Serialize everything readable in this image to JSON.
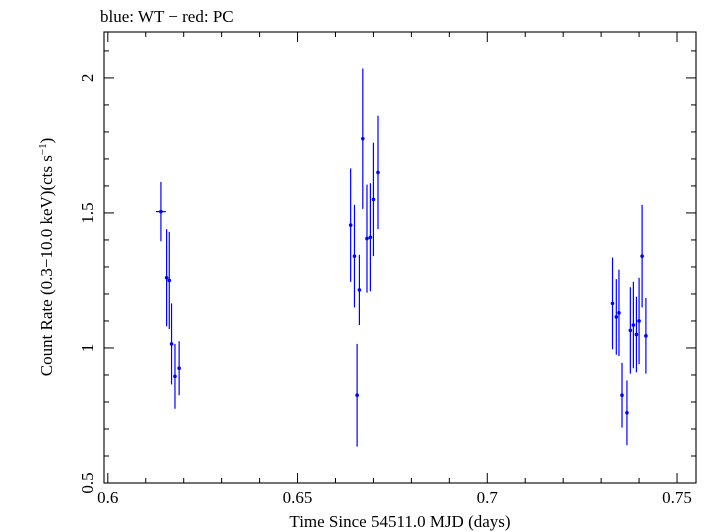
{
  "chart_data": {
    "type": "scatter",
    "title": "blue: WT − red: PC",
    "xlabel": "Time Since 54511.0 MJD (days)",
    "ylabel_main": "Count Rate (0.3−10.0 keV)(cts s",
    "ylabel_sup": "−1",
    "ylabel_end": ")",
    "xlim": [
      0.599,
      0.755
    ],
    "ylim": [
      0.5,
      2.17
    ],
    "xticks": [
      0.6,
      0.65,
      0.7,
      0.75
    ],
    "xtick_labels": [
      "0.6",
      "0.65",
      "0.7",
      "0.75"
    ],
    "yticks": [
      0.5,
      1,
      1.5,
      2
    ],
    "ytick_labels": [
      "0.5",
      "1",
      "1.5",
      "2"
    ],
    "grid": false,
    "series": [
      {
        "name": "WT",
        "color": "#0000ff",
        "points": [
          {
            "x": 0.614,
            "y": 1.505,
            "xerr": 0.0013,
            "yerr": 0.11
          },
          {
            "x": 0.6155,
            "y": 1.26,
            "xerr": 0.0003,
            "yerr": 0.18
          },
          {
            "x": 0.6162,
            "y": 1.25,
            "xerr": 0.0003,
            "yerr": 0.18
          },
          {
            "x": 0.6168,
            "y": 1.015,
            "xerr": 0.0003,
            "yerr": 0.15
          },
          {
            "x": 0.6177,
            "y": 0.895,
            "xerr": 0.0003,
            "yerr": 0.12
          },
          {
            "x": 0.6188,
            "y": 0.925,
            "xerr": 0.0003,
            "yerr": 0.1
          },
          {
            "x": 0.664,
            "y": 1.455,
            "xerr": 0.0003,
            "yerr": 0.21
          },
          {
            "x": 0.665,
            "y": 1.34,
            "xerr": 0.0003,
            "yerr": 0.19
          },
          {
            "x": 0.6657,
            "y": 0.825,
            "xerr": 0.0003,
            "yerr": 0.19
          },
          {
            "x": 0.6663,
            "y": 1.215,
            "xerr": 0.0003,
            "yerr": 0.13
          },
          {
            "x": 0.6672,
            "y": 1.775,
            "xerr": 0.0003,
            "yerr": 0.26
          },
          {
            "x": 0.6683,
            "y": 1.405,
            "xerr": 0.0003,
            "yerr": 0.2
          },
          {
            "x": 0.6692,
            "y": 1.41,
            "xerr": 0.0003,
            "yerr": 0.2
          },
          {
            "x": 0.67,
            "y": 1.55,
            "xerr": 0.0003,
            "yerr": 0.21
          },
          {
            "x": 0.6712,
            "y": 1.65,
            "xerr": 0.0003,
            "yerr": 0.21
          },
          {
            "x": 0.733,
            "y": 1.165,
            "xerr": 0.0003,
            "yerr": 0.17
          },
          {
            "x": 0.734,
            "y": 1.115,
            "xerr": 0.0003,
            "yerr": 0.14
          },
          {
            "x": 0.7347,
            "y": 1.13,
            "xerr": 0.0003,
            "yerr": 0.16
          },
          {
            "x": 0.7355,
            "y": 0.825,
            "xerr": 0.0003,
            "yerr": 0.12
          },
          {
            "x": 0.7368,
            "y": 0.76,
            "xerr": 0.0003,
            "yerr": 0.12
          },
          {
            "x": 0.7377,
            "y": 1.065,
            "xerr": 0.0003,
            "yerr": 0.16
          },
          {
            "x": 0.7385,
            "y": 1.085,
            "xerr": 0.0003,
            "yerr": 0.16
          },
          {
            "x": 0.7393,
            "y": 1.05,
            "xerr": 0.0003,
            "yerr": 0.14
          },
          {
            "x": 0.74,
            "y": 1.1,
            "xerr": 0.0003,
            "yerr": 0.16
          },
          {
            "x": 0.7408,
            "y": 1.34,
            "xerr": 0.0003,
            "yerr": 0.19
          },
          {
            "x": 0.7418,
            "y": 1.045,
            "xerr": 0.0003,
            "yerr": 0.14
          }
        ]
      }
    ]
  }
}
